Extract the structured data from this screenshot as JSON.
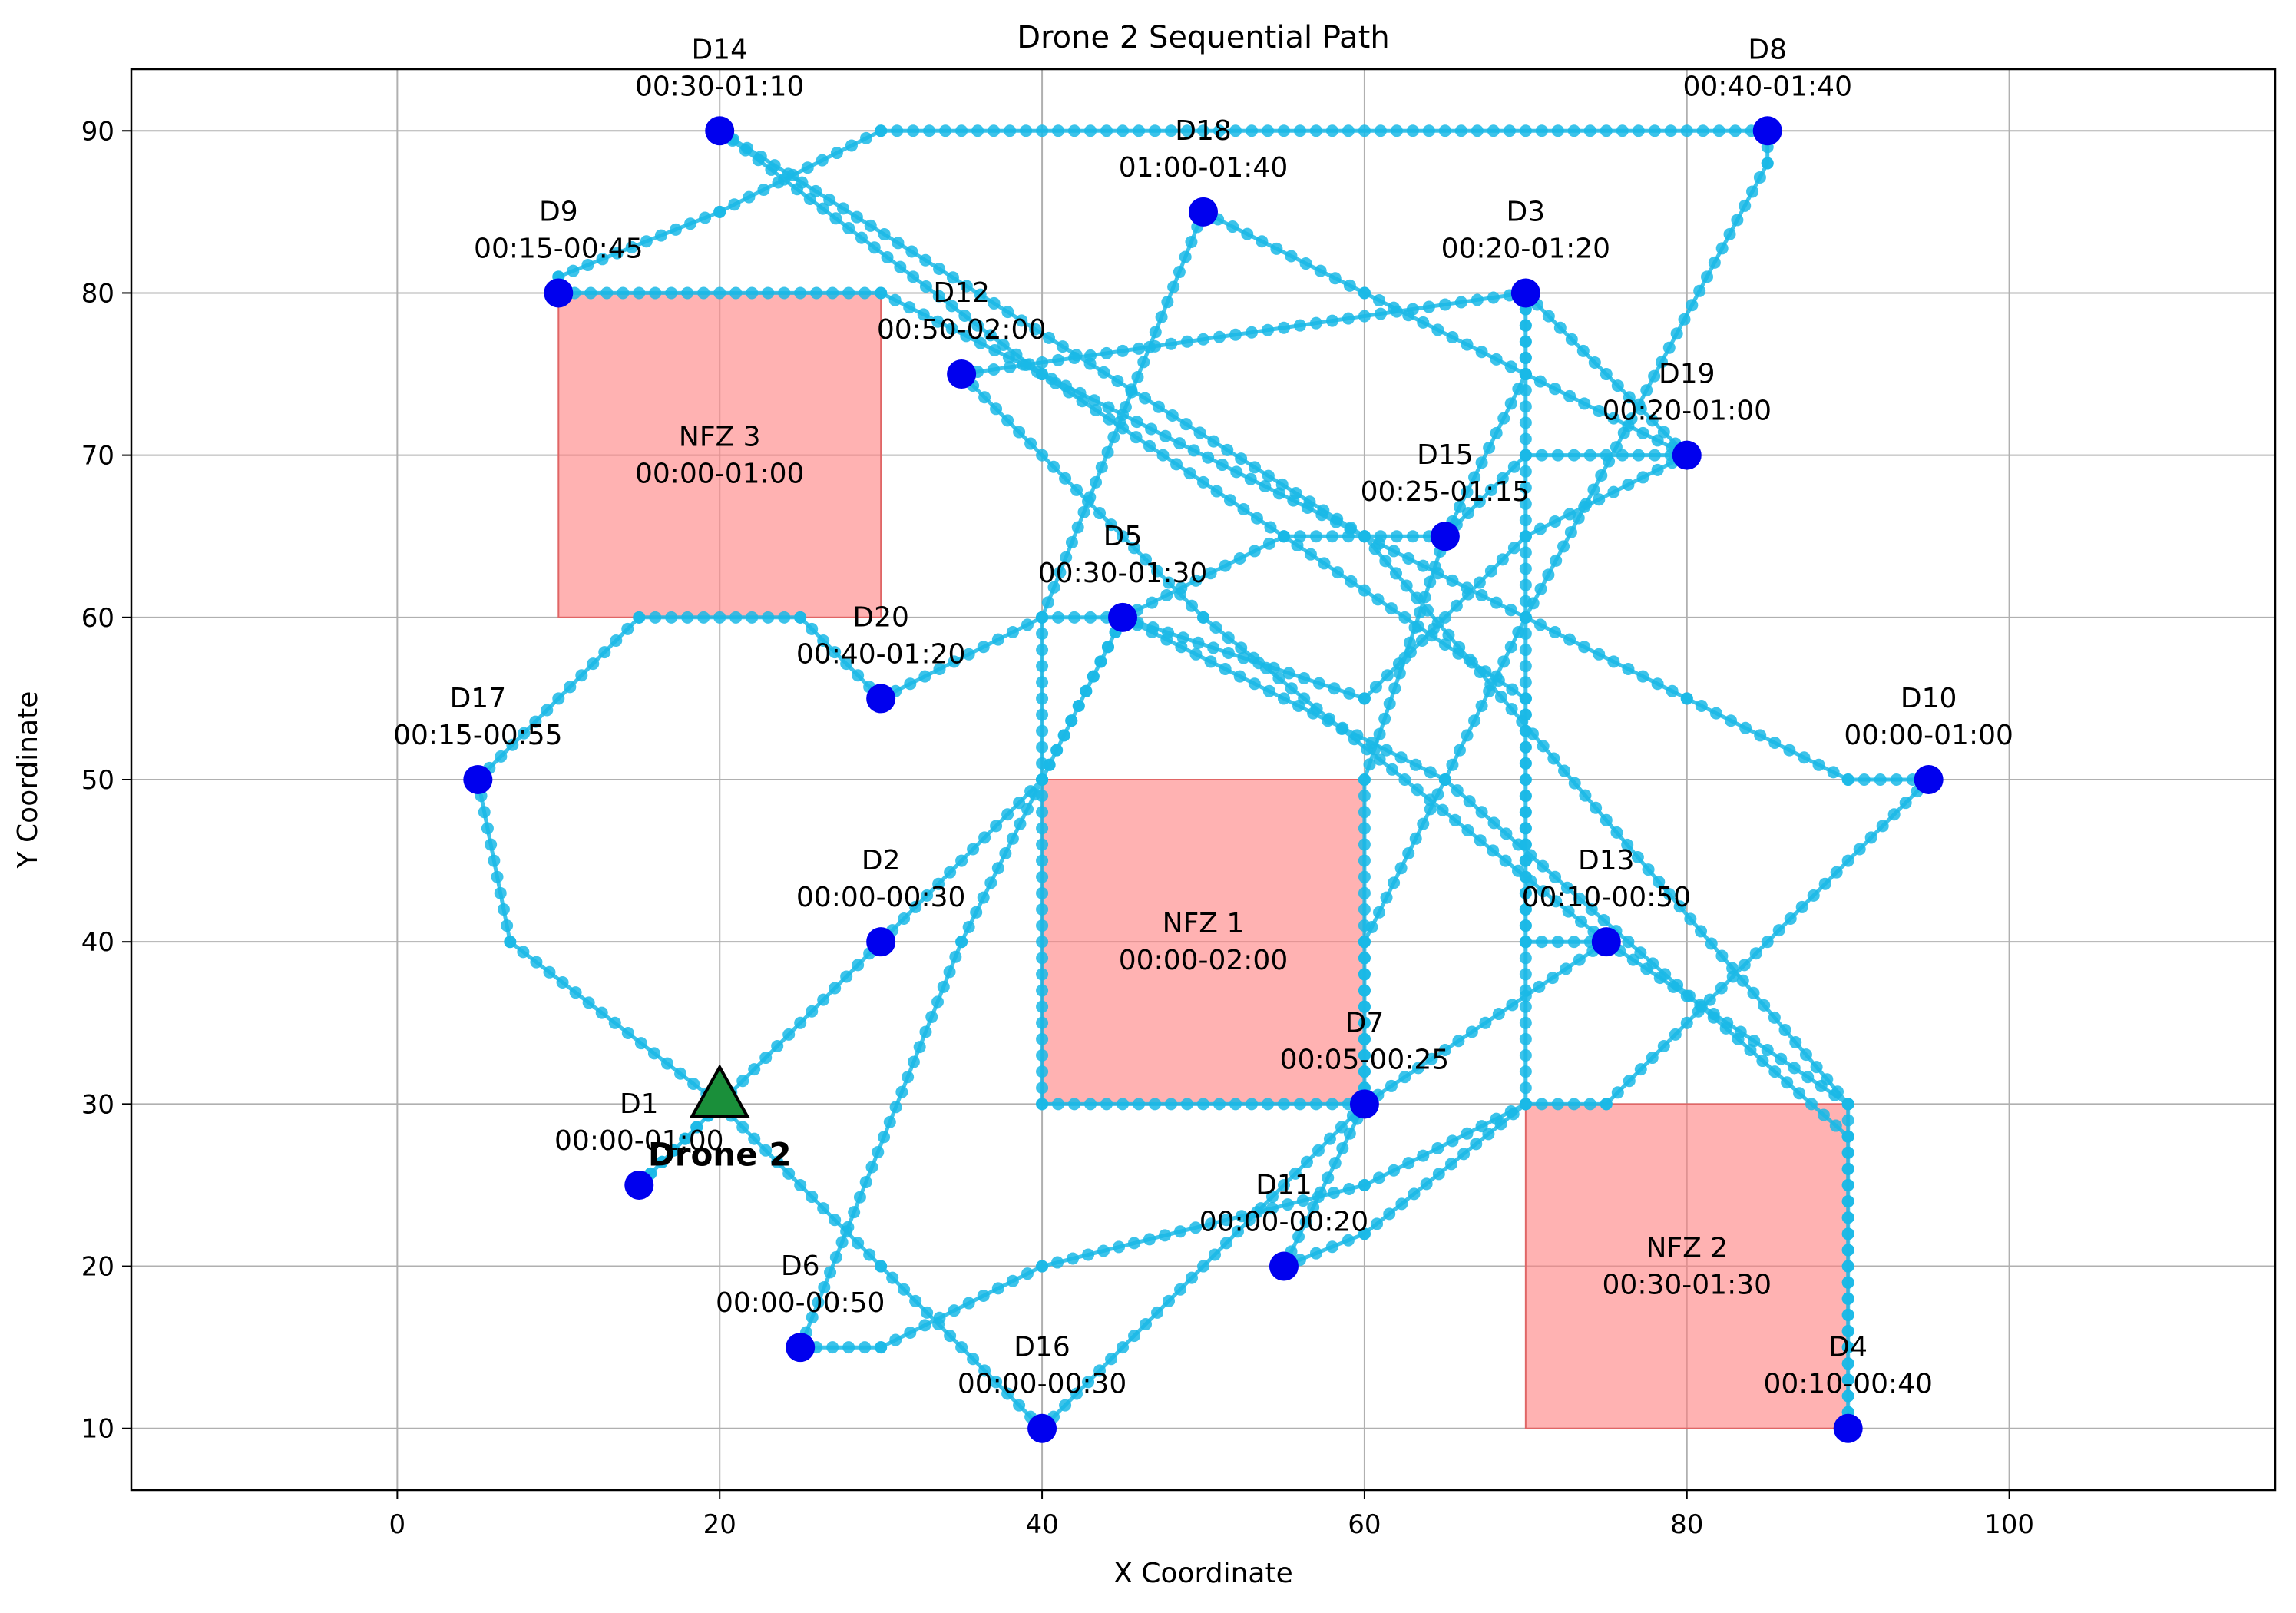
{
  "chart_data": {
    "type": "scatter",
    "title": "Drone 2 Sequential Path",
    "xlabel": "X Coordinate",
    "ylabel": "Y Coordinate",
    "xlim": [
      -16.5,
      116.5
    ],
    "ylim": [
      6.2,
      93.8
    ],
    "xticks": [
      0,
      20,
      40,
      60,
      80,
      100
    ],
    "yticks": [
      10,
      20,
      30,
      40,
      50,
      60,
      70,
      80,
      90
    ],
    "grid": true,
    "colors": {
      "path": "#1ab8e6",
      "delivery_point": "#0000ee",
      "nfz_fill": "#ff7f7f",
      "nfz_edge": "#e06666",
      "grid": "#b0b0b0",
      "drone": "#1a8f3a"
    },
    "no_fly_zones": [
      {
        "name": "NFZ 1",
        "window": "00:00-02:00",
        "x": [
          40,
          60
        ],
        "y": [
          30,
          50
        ]
      },
      {
        "name": "NFZ 2",
        "window": "00:30-01:30",
        "x": [
          70,
          90
        ],
        "y": [
          10,
          30
        ]
      },
      {
        "name": "NFZ 3",
        "window": "00:00-01:00",
        "x": [
          10,
          30
        ],
        "y": [
          60,
          80
        ]
      }
    ],
    "delivery_points": [
      {
        "id": "D1",
        "window": "00:00-01:00",
        "x": 15,
        "y": 25
      },
      {
        "id": "D2",
        "window": "00:00-00:30",
        "x": 30,
        "y": 40
      },
      {
        "id": "D3",
        "window": "00:20-01:20",
        "x": 70,
        "y": 80
      },
      {
        "id": "D4",
        "window": "00:10-00:40",
        "x": 90,
        "y": 10
      },
      {
        "id": "D5",
        "window": "00:30-01:30",
        "x": 45,
        "y": 60
      },
      {
        "id": "D6",
        "window": "00:00-00:50",
        "x": 25,
        "y": 15
      },
      {
        "id": "D7",
        "window": "00:05-00:25",
        "x": 60,
        "y": 30
      },
      {
        "id": "D8",
        "window": "00:40-01:40",
        "x": 85,
        "y": 90
      },
      {
        "id": "D9",
        "window": "00:15-00:45",
        "x": 10,
        "y": 80
      },
      {
        "id": "D10",
        "window": "00:00-01:00",
        "x": 95,
        "y": 50
      },
      {
        "id": "D11",
        "window": "00:00-00:20",
        "x": 55,
        "y": 20
      },
      {
        "id": "D12",
        "window": "00:50-02:00",
        "x": 35,
        "y": 75
      },
      {
        "id": "D13",
        "window": "00:10-00:50",
        "x": 75,
        "y": 40
      },
      {
        "id": "D14",
        "window": "00:30-01:10",
        "x": 20,
        "y": 90
      },
      {
        "id": "D15",
        "window": "00:25-01:15",
        "x": 65,
        "y": 65
      },
      {
        "id": "D16",
        "window": "00:00-00:30",
        "x": 40,
        "y": 10
      },
      {
        "id": "D17",
        "window": "00:15-00:55",
        "x": 5,
        "y": 50
      },
      {
        "id": "D18",
        "window": "01:00-01:40",
        "x": 50,
        "y": 85
      },
      {
        "id": "D19",
        "window": "00:20-01:00",
        "x": 80,
        "y": 70
      },
      {
        "id": "D20",
        "window": "00:40-01:20",
        "x": 30,
        "y": 55
      }
    ],
    "drone": {
      "label": "Drone 2",
      "x": 20,
      "y": 30
    },
    "path_route": [
      [
        20,
        30
      ],
      [
        15,
        25
      ],
      [
        20,
        30
      ],
      [
        30,
        40
      ],
      [
        40,
        50
      ],
      [
        45,
        60
      ],
      [
        55,
        65
      ],
      [
        65,
        65
      ],
      [
        70,
        70
      ],
      [
        80,
        70
      ],
      [
        70,
        80
      ],
      [
        70,
        40
      ],
      [
        75,
        40
      ],
      [
        60,
        30
      ],
      [
        55,
        20
      ],
      [
        60,
        22
      ],
      [
        70,
        30
      ],
      [
        75,
        30
      ],
      [
        95,
        50
      ],
      [
        90,
        50
      ],
      [
        80,
        55
      ],
      [
        70,
        60
      ],
      [
        60,
        65
      ],
      [
        30,
        80
      ],
      [
        10,
        80
      ],
      [
        10,
        81
      ],
      [
        20,
        85
      ],
      [
        30,
        90
      ],
      [
        85,
        90
      ],
      [
        85,
        88
      ],
      [
        70,
        60
      ],
      [
        65,
        50
      ],
      [
        60,
        40
      ],
      [
        60,
        30
      ],
      [
        40,
        30
      ],
      [
        40,
        60
      ],
      [
        50,
        85
      ],
      [
        60,
        80
      ],
      [
        70,
        75
      ],
      [
        80,
        70
      ],
      [
        70,
        65
      ],
      [
        60,
        55
      ],
      [
        45,
        60
      ],
      [
        40,
        60
      ],
      [
        30,
        55
      ],
      [
        25,
        60
      ],
      [
        15,
        60
      ],
      [
        5,
        50
      ],
      [
        7,
        40
      ],
      [
        20,
        30
      ],
      [
        30,
        20
      ],
      [
        40,
        10
      ],
      [
        60,
        30
      ],
      [
        60,
        50
      ],
      [
        65,
        65
      ],
      [
        70,
        75
      ],
      [
        70,
        80
      ],
      [
        35,
        75
      ],
      [
        50,
        60
      ],
      [
        75,
        40
      ],
      [
        90,
        30
      ],
      [
        90,
        10
      ],
      [
        90,
        28
      ],
      [
        65,
        50
      ],
      [
        45,
        60
      ],
      [
        35,
        40
      ],
      [
        25,
        15
      ],
      [
        30,
        15
      ],
      [
        40,
        20
      ],
      [
        60,
        25
      ],
      [
        70,
        30
      ],
      [
        70,
        55
      ],
      [
        40,
        75
      ],
      [
        20,
        90
      ],
      [
        60,
        65
      ],
      [
        90,
        30
      ]
    ]
  }
}
